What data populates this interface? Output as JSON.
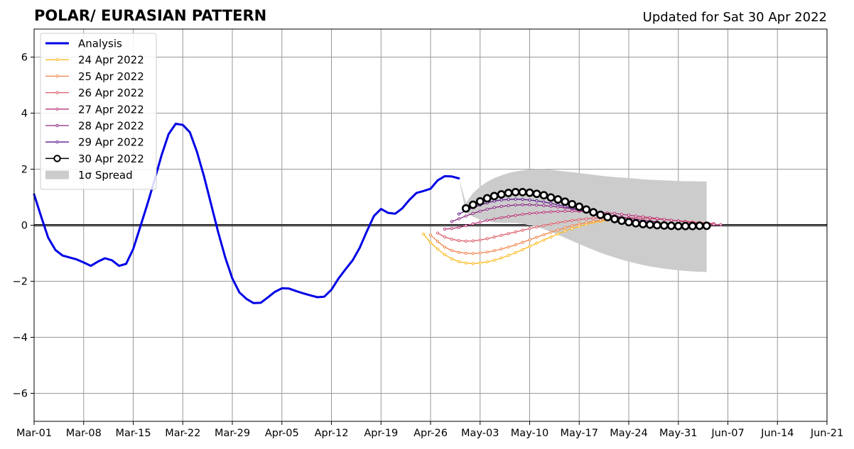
{
  "header": {
    "title": "POLAR/ EURASIAN  PATTERN",
    "updated": "Updated for Sat 30 Apr 2022"
  },
  "chart_data": {
    "type": "line",
    "title": "POLAR/ EURASIAN  PATTERN",
    "subtitle": "Updated for Sat 30 Apr 2022",
    "xlabel": "",
    "ylabel": "",
    "x_axis": {
      "type": "date",
      "range": [
        "2022-03-01",
        "2022-06-21"
      ],
      "ticks": [
        {
          "date": "2022-03-01",
          "label": "Mar-01"
        },
        {
          "date": "2022-03-08",
          "label": "Mar-08"
        },
        {
          "date": "2022-03-15",
          "label": "Mar-15"
        },
        {
          "date": "2022-03-22",
          "label": "Mar-22"
        },
        {
          "date": "2022-03-29",
          "label": "Mar-29"
        },
        {
          "date": "2022-04-05",
          "label": "Apr-05"
        },
        {
          "date": "2022-04-12",
          "label": "Apr-12"
        },
        {
          "date": "2022-04-19",
          "label": "Apr-19"
        },
        {
          "date": "2022-04-26",
          "label": "Apr-26"
        },
        {
          "date": "2022-05-03",
          "label": "May-03"
        },
        {
          "date": "2022-05-10",
          "label": "May-10"
        },
        {
          "date": "2022-05-17",
          "label": "May-17"
        },
        {
          "date": "2022-05-24",
          "label": "May-24"
        },
        {
          "date": "2022-05-31",
          "label": "May-31"
        },
        {
          "date": "2022-06-07",
          "label": "Jun-07"
        },
        {
          "date": "2022-06-14",
          "label": "Jun-14"
        },
        {
          "date": "2022-06-21",
          "label": "Jun-21"
        }
      ]
    },
    "y_axis": {
      "range": [
        -7,
        7
      ],
      "ticks": [
        {
          "value": 6,
          "label": "6"
        },
        {
          "value": 4,
          "label": "4"
        },
        {
          "value": 2,
          "label": "2"
        },
        {
          "value": 0,
          "label": "0"
        },
        {
          "value": -2,
          "label": "−2"
        },
        {
          "value": -4,
          "label": "−4"
        },
        {
          "value": -6,
          "label": "−6"
        }
      ]
    },
    "grid": true,
    "legend_position": "top-left",
    "zero_line": true,
    "analysis": {
      "name": "Analysis",
      "color": "#0000e6",
      "start_date": "2022-03-01",
      "values": [
        1.1,
        0.3,
        -0.45,
        -0.88,
        -1.08,
        -1.15,
        -1.22,
        -1.33,
        -1.45,
        -1.3,
        -1.18,
        -1.25,
        -1.45,
        -1.38,
        -0.85,
        -0.05,
        0.75,
        1.6,
        2.5,
        3.25,
        3.62,
        3.58,
        3.32,
        2.62,
        1.75,
        0.75,
        -0.25,
        -1.15,
        -1.9,
        -2.4,
        -2.63,
        -2.78,
        -2.77,
        -2.58,
        -2.38,
        -2.25,
        -2.26,
        -2.35,
        -2.43,
        -2.5,
        -2.57,
        -2.55,
        -2.3,
        -1.9,
        -1.57,
        -1.25,
        -0.8,
        -0.22,
        0.33,
        0.58,
        0.44,
        0.41,
        0.6,
        0.9,
        1.15,
        1.22,
        1.3,
        1.6,
        1.75,
        1.74,
        1.67
      ]
    },
    "forecasts": [
      {
        "name": "24 Apr 2022",
        "color": "#fbb91f",
        "start_date": "2022-04-25",
        "values": [
          -0.32,
          -0.62,
          -0.85,
          -1.05,
          -1.2,
          -1.3,
          -1.35,
          -1.37,
          -1.35,
          -1.31,
          -1.25,
          -1.17,
          -1.08,
          -0.98,
          -0.87,
          -0.76,
          -0.64,
          -0.53,
          -0.42,
          -0.31,
          -0.21,
          -0.12,
          -0.04,
          0.03,
          0.09,
          0.14,
          0.18,
          0.21
        ]
      },
      {
        "name": "25 Apr 2022",
        "color": "#f1844b",
        "start_date": "2022-04-26",
        "values": [
          -0.35,
          -0.58,
          -0.78,
          -0.9,
          -0.97,
          -1.0,
          -1.01,
          -0.99,
          -0.96,
          -0.91,
          -0.85,
          -0.78,
          -0.7,
          -0.61,
          -0.52,
          -0.43,
          -0.34,
          -0.25,
          -0.17,
          -0.09,
          -0.02,
          0.04,
          0.09,
          0.14,
          0.18,
          0.21,
          0.24
        ]
      },
      {
        "name": "26 Apr 2022",
        "color": "#db5c68",
        "start_date": "2022-04-27",
        "values": [
          -0.28,
          -0.42,
          -0.5,
          -0.55,
          -0.57,
          -0.56,
          -0.53,
          -0.48,
          -0.42,
          -0.36,
          -0.3,
          -0.24,
          -0.18,
          -0.12,
          -0.06,
          -0.01,
          0.04,
          0.09,
          0.13,
          0.17,
          0.2,
          0.23,
          0.25,
          0.26,
          0.27,
          0.28,
          0.28,
          0.27,
          0.26,
          0.25,
          0.24,
          0.22,
          0.2,
          0.18,
          0.16,
          0.14,
          0.12,
          0.1,
          0.08,
          0.06
        ]
      },
      {
        "name": "27 Apr 2022",
        "color": "#b73779",
        "start_date": "2022-04-28",
        "values": [
          -0.14,
          -0.12,
          -0.08,
          -0.02,
          0.05,
          0.11,
          0.17,
          0.22,
          0.27,
          0.31,
          0.35,
          0.39,
          0.42,
          0.44,
          0.46,
          0.48,
          0.49,
          0.5,
          0.5,
          0.5,
          0.49,
          0.48,
          0.46,
          0.44,
          0.42,
          0.39,
          0.36,
          0.33,
          0.3,
          0.27,
          0.24,
          0.21,
          0.18,
          0.15,
          0.12,
          0.09,
          0.07,
          0.05,
          0.03,
          0.02
        ]
      },
      {
        "name": "28 Apr 2022",
        "color": "#8c2981",
        "start_date": "2022-04-29",
        "values": [
          0.13,
          0.23,
          0.33,
          0.42,
          0.5,
          0.57,
          0.63,
          0.67,
          0.7,
          0.72,
          0.73,
          0.73,
          0.72,
          0.7,
          0.68,
          0.65,
          0.62,
          0.58,
          0.54,
          0.5,
          0.45,
          0.41,
          0.37,
          0.33,
          0.29,
          0.25,
          0.21,
          0.18,
          0.15,
          0.12
        ]
      },
      {
        "name": "29 Apr 2022",
        "color": "#5b1a8a",
        "start_date": "2022-04-30",
        "values": [
          0.4,
          0.52,
          0.63,
          0.72,
          0.8,
          0.86,
          0.9,
          0.92,
          0.93,
          0.92,
          0.9,
          0.87,
          0.83,
          0.78,
          0.73,
          0.67,
          0.61,
          0.55,
          0.49,
          0.43,
          0.37,
          0.32,
          0.27,
          0.22,
          0.18,
          0.14,
          0.11,
          0.08,
          0.06
        ]
      },
      {
        "name": "30 Apr 2022",
        "color": "#000000",
        "start_date": "2022-05-01",
        "values": [
          0.6,
          0.73,
          0.85,
          0.96,
          1.04,
          1.1,
          1.15,
          1.18,
          1.18,
          1.16,
          1.12,
          1.07,
          0.99,
          0.92,
          0.84,
          0.75,
          0.66,
          0.56,
          0.46,
          0.37,
          0.29,
          0.22,
          0.16,
          0.11,
          0.07,
          0.04,
          0.02,
          0.0,
          -0.01,
          -0.02,
          -0.03,
          -0.03,
          -0.03,
          -0.02,
          -0.02
        ]
      }
    ],
    "spread": {
      "name": "1σ Spread",
      "color": "#cccccc",
      "start_date": "2022-04-30",
      "upper": [
        1.67,
        0.8,
        1.15,
        1.38,
        1.55,
        1.68,
        1.78,
        1.86,
        1.92,
        1.96,
        1.99,
        2.0,
        2.0,
        1.98,
        1.95,
        1.92,
        1.89,
        1.86,
        1.83,
        1.8,
        1.77,
        1.74,
        1.72,
        1.7,
        1.68,
        1.66,
        1.64,
        1.62,
        1.61,
        1.6,
        1.59,
        1.58,
        1.57,
        1.57,
        1.56,
        1.56
      ],
      "lower": [
        1.67,
        0.45,
        0.3,
        0.2,
        0.14,
        0.1,
        0.08,
        0.08,
        0.08,
        0.05,
        0.0,
        -0.06,
        -0.14,
        -0.24,
        -0.34,
        -0.45,
        -0.56,
        -0.67,
        -0.78,
        -0.88,
        -0.98,
        -1.07,
        -1.15,
        -1.23,
        -1.3,
        -1.36,
        -1.42,
        -1.47,
        -1.51,
        -1.55,
        -1.58,
        -1.61,
        -1.63,
        -1.65,
        -1.66,
        -1.67
      ]
    },
    "legend": [
      {
        "label": "Analysis",
        "kind": "line-thick",
        "color": "#0000e6"
      },
      {
        "label": "24 Apr 2022",
        "kind": "line-dots",
        "color": "#fbb91f"
      },
      {
        "label": "25 Apr 2022",
        "kind": "line-dots",
        "color": "#f1844b"
      },
      {
        "label": "26 Apr 2022",
        "kind": "line-dots",
        "color": "#db5c68"
      },
      {
        "label": "27 Apr 2022",
        "kind": "line-dots",
        "color": "#b73779"
      },
      {
        "label": "28 Apr 2022",
        "kind": "line-dots",
        "color": "#8c2981"
      },
      {
        "label": "29 Apr 2022",
        "kind": "line-dots",
        "color": "#5b1a8a"
      },
      {
        "label": "30 Apr 2022",
        "kind": "line-circles",
        "color": "#000000"
      },
      {
        "label": "1σ Spread",
        "kind": "patch",
        "color": "#cccccc"
      }
    ]
  }
}
